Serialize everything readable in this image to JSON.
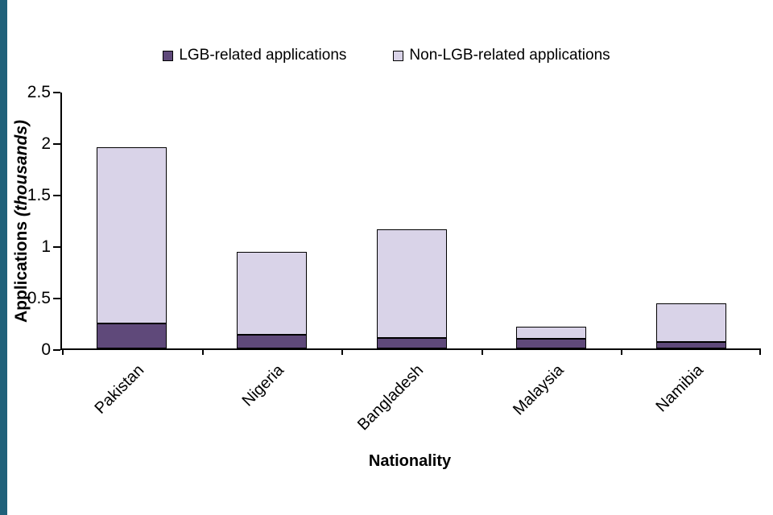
{
  "page": {
    "edge_strip_color": "#20617a",
    "background": "#ffffff"
  },
  "chart_data": {
    "type": "bar",
    "subtype": "stacked-column",
    "categories": [
      "Pakistan",
      "Nigeria",
      "Bangladesh",
      "Malaysia",
      "Namibia"
    ],
    "series": [
      {
        "name": "LGB-related applications",
        "color": "#5f497a",
        "values": [
          0.24,
          0.13,
          0.1,
          0.09,
          0.06
        ]
      },
      {
        "name": "Non-LGB-related applications",
        "color": "#d9d3e8",
        "values": [
          1.71,
          0.81,
          1.06,
          0.12,
          0.38
        ]
      }
    ],
    "totals": [
      1.95,
      0.94,
      1.16,
      0.21,
      0.44
    ],
    "title": "",
    "xlabel": "Nationality",
    "ylabel_main": "Applications",
    "ylabel_note": "(thousands)",
    "ylim": [
      0,
      2.5
    ],
    "yticks": [
      0,
      0.5,
      1,
      1.5,
      2,
      2.5
    ],
    "grid": false,
    "legend_position": "top-center",
    "bar_border_color": "#000000"
  }
}
